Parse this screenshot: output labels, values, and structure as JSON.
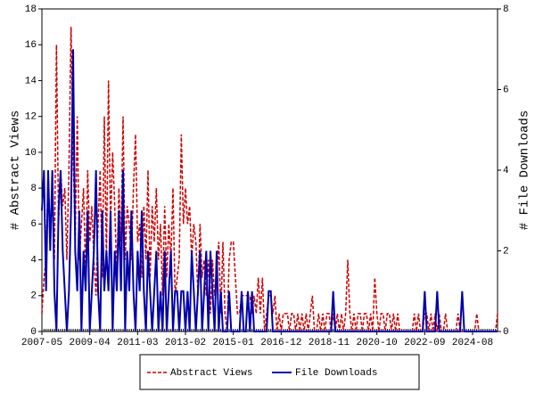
{
  "chart_data": {
    "type": "line",
    "y_label": "# Abstract Views",
    "y2_label": "# File Downloads",
    "x": [
      "2007-05",
      "2007-06",
      "2007-07",
      "2007-08",
      "2007-09",
      "2007-10",
      "2007-11",
      "2007-12",
      "2008-01",
      "2008-02",
      "2008-03",
      "2008-04",
      "2008-05",
      "2008-06",
      "2008-07",
      "2008-08",
      "2008-09",
      "2008-10",
      "2008-11",
      "2008-12",
      "2009-01",
      "2009-02",
      "2009-03",
      "2009-04",
      "2009-05",
      "2009-06",
      "2009-07",
      "2009-08",
      "2009-09",
      "2009-10",
      "2009-11",
      "2009-12",
      "2010-01",
      "2010-02",
      "2010-03",
      "2010-04",
      "2010-05",
      "2010-06",
      "2010-07",
      "2010-08",
      "2010-09",
      "2010-10",
      "2010-11",
      "2010-12",
      "2011-01",
      "2011-02",
      "2011-03",
      "2011-04",
      "2011-05",
      "2011-06",
      "2011-07",
      "2011-08",
      "2011-09",
      "2011-10",
      "2011-11",
      "2011-12",
      "2012-01",
      "2012-02",
      "2012-03",
      "2012-04",
      "2012-05",
      "2012-06",
      "2012-07",
      "2012-08",
      "2012-09",
      "2012-10",
      "2012-11",
      "2012-12",
      "2013-01",
      "2013-02",
      "2013-03",
      "2013-04",
      "2013-05",
      "2013-06",
      "2013-07",
      "2013-08",
      "2013-09",
      "2013-10",
      "2013-11",
      "2013-12",
      "2014-01",
      "2014-02",
      "2014-03",
      "2014-04",
      "2014-05",
      "2014-06",
      "2014-07",
      "2014-08",
      "2014-09",
      "2014-10",
      "2014-11",
      "2014-12",
      "2015-01",
      "2015-02",
      "2015-03",
      "2015-04",
      "2015-05",
      "2015-06",
      "2015-07",
      "2015-08",
      "2015-09",
      "2015-10",
      "2015-11",
      "2015-12",
      "2016-01",
      "2016-02",
      "2016-03",
      "2016-04",
      "2016-05",
      "2016-06",
      "2016-07",
      "2016-08",
      "2016-09",
      "2016-10",
      "2016-11",
      "2016-12",
      "2017-01",
      "2017-02",
      "2017-03",
      "2017-04",
      "2017-05",
      "2017-06",
      "2017-07",
      "2017-08",
      "2017-09",
      "2017-10",
      "2017-11",
      "2017-12",
      "2018-01",
      "2018-02",
      "2018-03",
      "2018-04",
      "2018-05",
      "2018-06",
      "2018-07",
      "2018-08",
      "2018-09",
      "2018-10",
      "2018-11",
      "2018-12",
      "2019-01",
      "2019-02",
      "2019-03",
      "2019-04",
      "2019-05",
      "2019-06",
      "2019-07",
      "2019-08",
      "2019-09",
      "2019-10",
      "2019-11",
      "2019-12",
      "2020-01",
      "2020-02",
      "2020-03",
      "2020-04",
      "2020-05",
      "2020-06",
      "2020-07",
      "2020-08",
      "2020-09",
      "2020-10",
      "2020-11",
      "2020-12",
      "2021-01",
      "2021-02",
      "2021-03",
      "2021-04",
      "2021-05",
      "2021-06",
      "2021-07",
      "2021-08",
      "2021-09",
      "2021-10",
      "2021-11",
      "2021-12",
      "2022-01",
      "2022-02",
      "2022-03",
      "2022-04",
      "2022-05",
      "2022-06",
      "2022-07",
      "2022-08",
      "2022-09",
      "2022-10",
      "2022-11",
      "2022-12",
      "2023-01",
      "2023-02",
      "2023-03",
      "2023-04",
      "2023-05",
      "2023-06",
      "2023-07",
      "2023-08",
      "2023-09",
      "2023-10",
      "2023-11",
      "2023-12",
      "2024-01",
      "2024-02",
      "2024-03",
      "2024-04",
      "2024-05",
      "2024-06",
      "2024-07",
      "2024-08",
      "2024-09",
      "2024-10",
      "2024-11",
      "2024-12",
      "2025-01",
      "2025-02",
      "2025-03",
      "2025-04",
      "2025-05",
      "2025-06",
      "2025-07",
      "2025-08"
    ],
    "xticks": [
      "2007-05",
      "2009-04",
      "2011-03",
      "2013-02",
      "2015-01",
      "2016-12",
      "2018-11",
      "2020-10",
      "2022-09",
      "2024-08"
    ],
    "ylim": [
      0,
      18
    ],
    "yticks": [
      0,
      2,
      4,
      6,
      8,
      10,
      12,
      14,
      16,
      18
    ],
    "y2lim": [
      0,
      8
    ],
    "y2ticks": [
      0,
      2,
      4,
      6,
      8
    ],
    "series": [
      {
        "name": "Abstract Views",
        "color": "#cc0000",
        "dashed": true,
        "values": [
          1,
          3,
          4,
          9,
          5,
          8,
          4,
          16,
          6,
          9,
          7,
          8,
          4,
          9,
          17,
          10,
          5,
          12,
          4,
          6,
          8,
          3,
          9,
          5,
          7,
          4,
          2,
          6,
          9,
          3,
          12,
          4,
          14,
          6,
          10,
          7,
          3,
          8,
          5,
          12,
          4,
          7,
          6,
          4,
          8,
          11,
          5,
          6,
          3,
          7,
          4,
          9,
          3,
          7,
          5,
          8,
          4,
          6,
          2,
          7,
          3,
          6,
          4,
          8,
          2,
          3,
          4,
          11,
          6,
          8,
          6,
          7,
          4,
          6,
          5,
          2,
          6,
          3,
          4,
          2,
          4,
          1,
          4,
          2,
          3,
          5,
          1,
          5,
          1,
          0,
          4,
          5,
          5,
          3,
          1,
          1,
          2,
          2,
          2,
          2,
          2,
          1,
          2,
          1,
          3,
          1,
          3,
          0,
          1,
          2,
          2,
          1,
          2,
          0,
          1,
          0,
          1,
          1,
          1,
          0,
          1,
          1,
          0,
          1,
          0,
          1,
          0,
          1,
          0,
          1,
          2,
          0,
          0,
          1,
          0,
          1,
          0,
          1,
          1,
          0,
          1,
          0,
          1,
          0,
          1,
          0,
          1,
          4,
          1,
          0,
          1,
          0,
          1,
          1,
          0,
          1,
          1,
          0,
          1,
          0,
          3,
          1,
          0,
          1,
          1,
          0,
          1,
          1,
          0,
          1,
          0,
          1,
          0,
          0,
          0,
          0,
          0,
          0,
          0,
          1,
          0,
          1,
          0,
          0,
          1,
          1,
          0,
          1,
          0,
          1,
          0,
          1,
          0,
          0,
          1,
          0,
          0,
          0,
          0,
          0,
          1,
          0,
          0,
          0,
          0,
          0,
          0,
          0,
          0,
          1,
          0,
          0,
          0,
          0,
          0,
          0,
          0,
          0,
          0,
          1
        ]
      },
      {
        "name": "File Downloads",
        "color": "#0000aa",
        "axis": "y2",
        "values": [
          3,
          4,
          1,
          4,
          2,
          4,
          1,
          0,
          3,
          4,
          2,
          1,
          0,
          1,
          3,
          7,
          2,
          1,
          3,
          0,
          2,
          1,
          3,
          0,
          1,
          2,
          4,
          1,
          0,
          3,
          1,
          2,
          1,
          3,
          0,
          2,
          1,
          3,
          1,
          4,
          0,
          2,
          1,
          3,
          1,
          0,
          2,
          1,
          3,
          1,
          0,
          2,
          1,
          0,
          1,
          2,
          0,
          1,
          0,
          2,
          0,
          1,
          2,
          0,
          1,
          1,
          0,
          1,
          1,
          0,
          1,
          0,
          2,
          1,
          0,
          1,
          2,
          0,
          1,
          2,
          0,
          2,
          1,
          0,
          2,
          0,
          1,
          0,
          0,
          0,
          1,
          0,
          0,
          0,
          0,
          0,
          1,
          0,
          0,
          1,
          0,
          1,
          0,
          0,
          0,
          0,
          0,
          0,
          0,
          1,
          1,
          0,
          0,
          0,
          0,
          0,
          0,
          0,
          0,
          0,
          0,
          0,
          0,
          0,
          0,
          0,
          0,
          0,
          0,
          0,
          0,
          0,
          0,
          0,
          0,
          0,
          0,
          0,
          0,
          0,
          1,
          0,
          0,
          0,
          0,
          0,
          0,
          0,
          0,
          0,
          0,
          0,
          0,
          0,
          0,
          0,
          0,
          0,
          0,
          0,
          0,
          0,
          0,
          0,
          0,
          0,
          0,
          0,
          0,
          0,
          0,
          0,
          0,
          0,
          0,
          0,
          0,
          0,
          0,
          0,
          0,
          0,
          0,
          0,
          1,
          0,
          0,
          0,
          0,
          0,
          1,
          0,
          0,
          0,
          0,
          0,
          0,
          0,
          0,
          0,
          0,
          0,
          1,
          0,
          0,
          0,
          0,
          0,
          0,
          0,
          0,
          0,
          0,
          0,
          0,
          0,
          0,
          0,
          0,
          0
        ]
      }
    ]
  }
}
